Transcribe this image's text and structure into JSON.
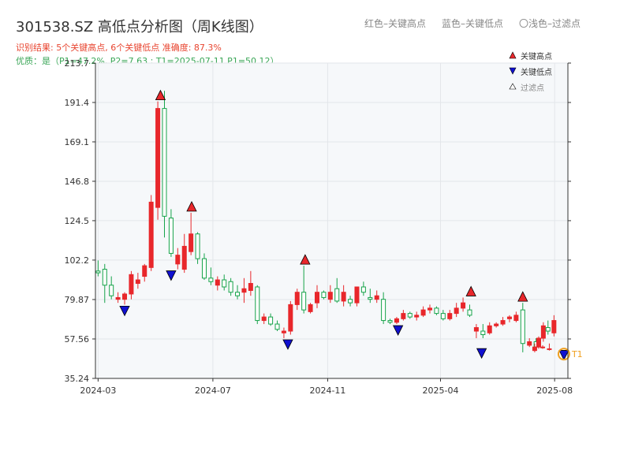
{
  "header": {
    "title": "301538.SZ 高低点分析图（周K线图）",
    "subtitle": "识别结果: 5个关键高点, 6个关键低点  准确度: 87.3%",
    "quality": "优质：是（P1=47.2%, P2=7.63 ; T1=2025-07-11 P1=50.12）",
    "legend_red": "红色–关键高点",
    "legend_blue": "蓝色–关键低点",
    "legend_light": "〇浅色–过滤点"
  },
  "colors": {
    "up": "#e8272b",
    "down": "#16a34a",
    "high_marker": "#e8272b",
    "low_marker": "#1010d0",
    "filtered": "#ffffff",
    "highlight": "#f0a020"
  },
  "chart_data": {
    "type": "candlestick",
    "title": "301538.SZ 高低点分析图（周K线图）",
    "ylim": [
      35.24,
      213.7
    ],
    "y_ticks": [
      "35.24",
      "57.56",
      "79.87",
      "102.2",
      "124.5",
      "146.8",
      "169.1",
      "191.4",
      "213.7"
    ],
    "x_ticks": [
      {
        "label": "2024-03",
        "week": 0
      },
      {
        "label": "2024-07",
        "week": 17.3
      },
      {
        "label": "2024-11",
        "week": 34.6
      },
      {
        "label": "2025-04",
        "week": 51.6
      },
      {
        "label": "2025-08",
        "week": 68.8
      }
    ],
    "weeks": 69,
    "candles": [
      [
        96,
        102,
        93,
        95
      ],
      [
        97,
        100,
        78,
        88
      ],
      [
        88,
        93,
        80,
        82
      ],
      [
        80,
        84,
        78,
        81
      ],
      [
        80,
        84,
        77,
        83
      ],
      [
        83,
        96,
        80,
        94
      ],
      [
        89,
        95,
        86,
        91
      ],
      [
        93,
        100,
        90,
        99
      ],
      [
        98,
        139,
        96,
        135
      ],
      [
        132,
        192,
        125,
        188
      ],
      [
        188,
        198,
        115,
        127
      ],
      [
        126,
        131,
        104,
        106
      ],
      [
        100,
        109,
        97,
        105
      ],
      [
        97,
        117,
        95,
        110
      ],
      [
        107,
        129,
        105,
        117
      ],
      [
        117,
        118,
        100,
        103
      ],
      [
        103,
        106,
        91,
        92
      ],
      [
        92,
        98,
        88,
        90
      ],
      [
        88,
        93,
        85,
        91
      ],
      [
        91,
        94,
        85,
        87
      ],
      [
        90,
        92,
        82,
        84
      ],
      [
        84,
        88,
        80,
        82
      ],
      [
        84,
        92,
        78,
        86
      ],
      [
        85,
        96,
        82,
        89
      ],
      [
        87,
        88,
        66,
        68
      ],
      [
        68,
        72,
        66,
        70
      ],
      [
        70,
        72,
        65,
        66
      ],
      [
        66,
        68,
        62,
        63
      ],
      [
        61,
        64,
        58,
        62
      ],
      [
        62,
        79,
        60,
        77
      ],
      [
        77,
        86,
        74,
        84
      ],
      [
        84,
        99,
        72,
        74
      ],
      [
        73,
        78,
        72,
        77
      ],
      [
        78,
        88,
        75,
        84
      ],
      [
        84,
        85,
        80,
        81
      ],
      [
        80,
        88,
        78,
        84
      ],
      [
        86,
        92,
        78,
        79
      ],
      [
        79,
        88,
        76,
        84
      ],
      [
        80,
        82,
        76,
        78
      ],
      [
        78,
        86,
        76,
        87
      ],
      [
        87,
        90,
        82,
        84
      ],
      [
        81,
        86,
        78,
        80
      ],
      [
        80,
        85,
        78,
        82
      ],
      [
        80,
        84,
        66,
        68
      ],
      [
        68,
        69,
        66,
        67
      ],
      [
        67,
        70,
        66,
        69
      ],
      [
        69,
        74,
        68,
        72
      ],
      [
        72,
        73,
        69,
        70
      ],
      [
        70,
        73,
        68,
        71
      ],
      [
        71,
        76,
        70,
        74
      ],
      [
        74,
        77,
        72,
        75
      ],
      [
        75,
        76,
        71,
        72
      ],
      [
        72,
        74,
        68,
        69
      ],
      [
        69,
        74,
        68,
        72
      ],
      [
        72,
        78,
        70,
        75
      ],
      [
        75,
        81,
        73,
        78
      ],
      [
        74,
        77,
        70,
        71
      ],
      [
        62,
        66,
        58,
        64
      ],
      [
        62,
        66,
        58,
        60
      ],
      [
        61,
        67,
        60,
        65
      ],
      [
        65,
        67,
        64,
        66
      ],
      [
        66,
        70,
        65,
        68
      ],
      [
        69,
        71,
        67,
        70
      ],
      [
        68,
        73,
        67,
        71
      ],
      [
        74,
        78,
        50,
        55
      ],
      [
        54,
        58,
        53,
        56
      ],
      [
        56,
        58,
        52,
        53
      ],
      [
        53,
        54,
        52,
        53
      ],
      [
        52,
        55,
        51,
        52
      ]
    ],
    "tail_candles": [
      {
        "week": 65.8,
        "ohlc": [
          51,
          55,
          50,
          53
        ]
      },
      {
        "week": 66.4,
        "ohlc": [
          53,
          59,
          52,
          58
        ]
      },
      {
        "week": 67.1,
        "ohlc": [
          58,
          67,
          56,
          65
        ]
      },
      {
        "week": 67.8,
        "ohlc": [
          64,
          68,
          60,
          62
        ]
      },
      {
        "week": 68.7,
        "ohlc": [
          61,
          71,
          59,
          68
        ]
      }
    ],
    "key_highs": [
      {
        "week": 9.4,
        "value": 192
      },
      {
        "week": 14.1,
        "value": 129
      },
      {
        "week": 31.2,
        "value": 99
      },
      {
        "week": 56.2,
        "value": 81
      },
      {
        "week": 64.0,
        "value": 78
      }
    ],
    "key_lows": [
      {
        "week": 4.0,
        "value": 77
      },
      {
        "week": 11.0,
        "value": 97
      },
      {
        "week": 28.6,
        "value": 58
      },
      {
        "week": 45.2,
        "value": 66
      },
      {
        "week": 57.8,
        "value": 53
      },
      {
        "week": 70.2,
        "value": 52
      }
    ],
    "t1_marker": {
      "week": 70.2,
      "value": 49,
      "label": "T1"
    },
    "legend": {
      "high": "关键高点",
      "low": "关键低点",
      "filtered": "过滤点",
      "placement": "top-right"
    },
    "grid": true
  }
}
